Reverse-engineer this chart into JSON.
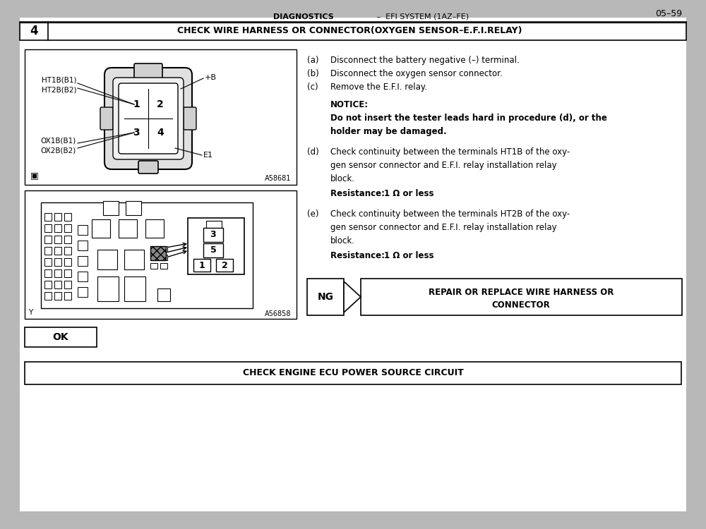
{
  "page_number": "05–59",
  "header_bold": "DIAGNOSTICS",
  "header_normal": " –  EFI SYSTEM (1AZ–FE)",
  "step_number": "4",
  "step_title": "CHECK WIRE HARNESS OR CONNECTOR(OXYGEN SENSOR–E.F.I.RELAY)",
  "inst_a": "(a)    Disconnect the battery negative (–) terminal.",
  "inst_b": "(b)    Disconnect the oxygen sensor connector.",
  "inst_c": "(c)    Remove the E.F.I. relay.",
  "notice_title": "NOTICE:",
  "notice_line1": "Do not insert the tester leads hard in procedure (d), or the",
  "notice_line2": "holder may be damaged.",
  "step_d_label": "(d)",
  "step_d_line1": "Check continuity between the terminals HT1B of the oxy-",
  "step_d_line2": "gen sensor connector and E.F.I. relay installation relay",
  "step_d_line3": "block.",
  "resist_d_bold": "Resistance: ",
  "resist_d_rest": "1 Ω or less",
  "step_e_label": "(e)",
  "step_e_line1": "Check continuity between the terminals HT2B of the oxy-",
  "step_e_line2": "gen sensor connector and E.F.I. relay installation relay",
  "step_e_line3": "block.",
  "resist_e_bold": "Resistance: ",
  "resist_e_rest": "1 Ω or less",
  "ng_label": "NG",
  "ng_text_line1": "REPAIR OR REPLACE WIRE HARNESS OR",
  "ng_text_line2": "CONNECTOR",
  "ok_label": "OK",
  "bottom_title": "CHECK ENGINE ECU POWER SOURCE CIRCUIT",
  "ref_a": "A58681",
  "ref_b": "A56858",
  "corner_y": "Y",
  "label_ht": "HT1B(B1)\nHT2B(B2)",
  "label_ox": "OX1B(B1)\nOX2B(B2)",
  "label_pb": "+B",
  "label_e1": "E1",
  "bg_color": "#b8b8b8"
}
